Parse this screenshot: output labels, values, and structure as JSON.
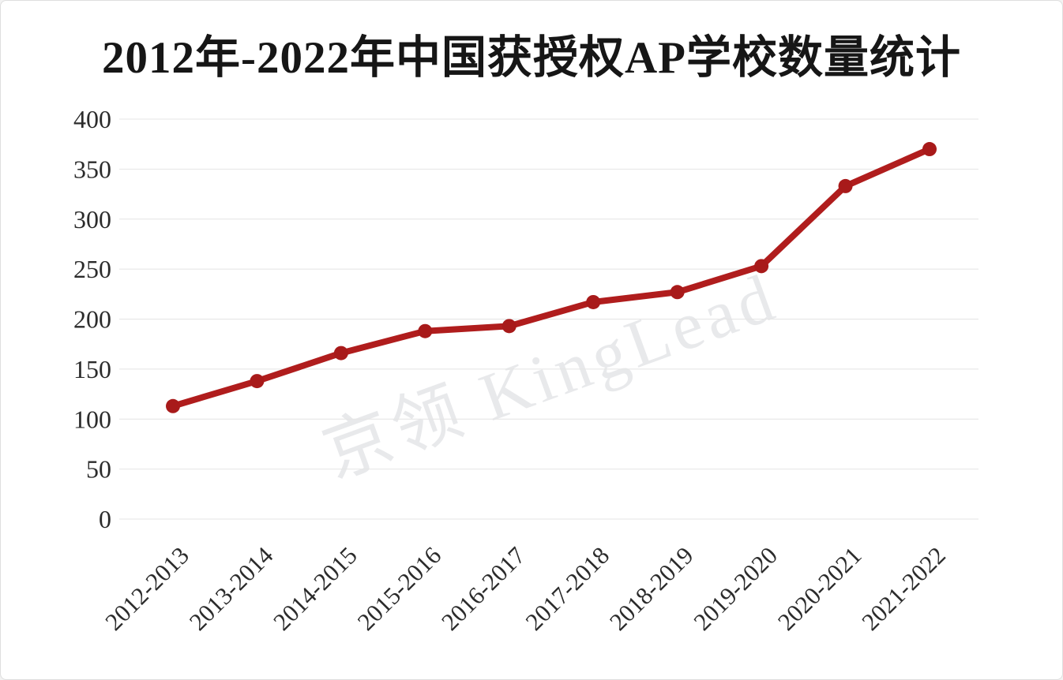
{
  "chart_data": {
    "type": "line",
    "title": "2012年-2022年中国获授权AP学校数量统计",
    "categories": [
      "2012-2013",
      "2013-2014",
      "2014-2015",
      "2015-2016",
      "2016-2017",
      "2017-2018",
      "2018-2019",
      "2019-2020",
      "2020-2021",
      "2021-2022"
    ],
    "values": [
      113,
      138,
      166,
      188,
      193,
      217,
      227,
      253,
      333,
      370
    ],
    "xlabel": "",
    "ylabel": "",
    "ylim": [
      0,
      400
    ],
    "yticks": [
      0,
      50,
      100,
      150,
      200,
      250,
      300,
      350,
      400
    ],
    "grid": "horizontal",
    "legend": "none",
    "line_color": "#b01d1d",
    "marker_color": "#a81a1a",
    "grid_color": "#e4e4e4",
    "tick_label_color": "#2b2b2b",
    "watermark": "京领 KingLead"
  }
}
